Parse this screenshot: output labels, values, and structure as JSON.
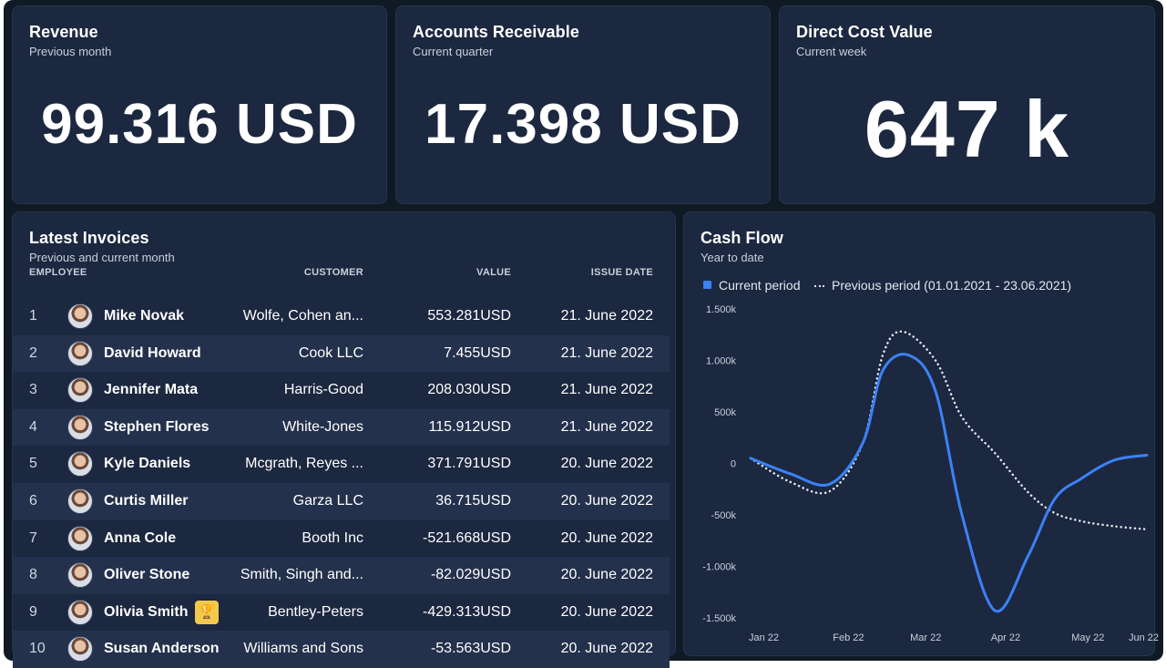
{
  "kpis": [
    {
      "title": "Revenue",
      "subtitle": "Previous month",
      "value": "99.316 USD"
    },
    {
      "title": "Accounts Receivable",
      "subtitle": "Current quarter",
      "value": "17.398 USD"
    },
    {
      "title": "Direct Cost Value",
      "subtitle": "Current week",
      "value": "647 k"
    }
  ],
  "invoices": {
    "title": "Latest Invoices",
    "subtitle": "Previous and current month",
    "headers": {
      "employee": "EMPLOYEE",
      "customer": "CUSTOMER",
      "value": "VALUE",
      "date": "ISSUE DATE"
    },
    "rows": [
      {
        "idx": "1",
        "name": "Mike Novak",
        "customer": "Wolfe, Cohen an...",
        "value": "553.281USD",
        "date": "21. June 2022"
      },
      {
        "idx": "2",
        "name": "David Howard",
        "customer": "Cook LLC",
        "value": "7.455USD",
        "date": "21. June 2022"
      },
      {
        "idx": "3",
        "name": "Jennifer Mata",
        "customer": "Harris-Good",
        "value": "208.030USD",
        "date": "21. June 2022"
      },
      {
        "idx": "4",
        "name": "Stephen Flores",
        "customer": "White-Jones",
        "value": "115.912USD",
        "date": "21. June 2022"
      },
      {
        "idx": "5",
        "name": "Kyle Daniels",
        "customer": "Mcgrath, Reyes ...",
        "value": "371.791USD",
        "date": "20. June 2022"
      },
      {
        "idx": "6",
        "name": "Curtis Miller",
        "customer": "Garza LLC",
        "value": "36.715USD",
        "date": "20. June 2022"
      },
      {
        "idx": "7",
        "name": "Anna Cole",
        "customer": "Booth Inc",
        "value": "-521.668USD",
        "date": "20. June 2022"
      },
      {
        "idx": "8",
        "name": "Oliver Stone",
        "customer": "Smith, Singh and...",
        "value": "-82.029USD",
        "date": "20. June 2022"
      },
      {
        "idx": "9",
        "name": "Olivia Smith",
        "customer": "Bentley-Peters",
        "value": "-429.313USD",
        "date": "20. June 2022",
        "badge": "trophy-icon"
      },
      {
        "idx": "10",
        "name": "Susan Anderson",
        "customer": "Williams and Sons",
        "value": "-53.563USD",
        "date": "20. June 2022"
      }
    ]
  },
  "cashflow": {
    "title": "Cash Flow",
    "subtitle": "Year to date",
    "legend_current": "Current period",
    "legend_previous": "Previous period (01.01.2021 - 23.06.2021)"
  },
  "chart_data": {
    "type": "line",
    "x": [
      "Jan 22",
      "Feb 22",
      "Mar 22",
      "Apr 22",
      "May 22",
      "Jun 22"
    ],
    "yticks": [
      "1.500k",
      "1.000k",
      "500k",
      "0",
      "-500k",
      "-1.000k",
      "-1.500k"
    ],
    "ylim": [
      -1500,
      1500
    ],
    "series": [
      {
        "name": "Current period",
        "color": "#3b82f6",
        "style": "solid",
        "points": [
          [
            0,
            50
          ],
          [
            0.3,
            -100
          ],
          [
            0.6,
            -200
          ],
          [
            0.85,
            200
          ],
          [
            1.0,
            900
          ],
          [
            1.2,
            1050
          ],
          [
            1.4,
            700
          ],
          [
            1.6,
            -500
          ],
          [
            1.85,
            -1430
          ],
          [
            2.1,
            -900
          ],
          [
            2.3,
            -350
          ],
          [
            2.5,
            -150
          ],
          [
            2.75,
            30
          ],
          [
            3.0,
            80
          ]
        ]
      },
      {
        "name": "Previous period (01.01.2021 - 23.06.2021)",
        "color": "#e3e8f0",
        "style": "dotted",
        "points": [
          [
            0,
            50
          ],
          [
            0.3,
            -180
          ],
          [
            0.6,
            -270
          ],
          [
            0.85,
            200
          ],
          [
            1.0,
            1050
          ],
          [
            1.15,
            1280
          ],
          [
            1.4,
            1000
          ],
          [
            1.6,
            450
          ],
          [
            1.85,
            100
          ],
          [
            2.1,
            -280
          ],
          [
            2.3,
            -480
          ],
          [
            2.5,
            -560
          ],
          [
            2.75,
            -610
          ],
          [
            3.0,
            -640
          ]
        ]
      }
    ],
    "xlabel": "",
    "ylabel": "",
    "grid": false,
    "legend": "top-left"
  }
}
